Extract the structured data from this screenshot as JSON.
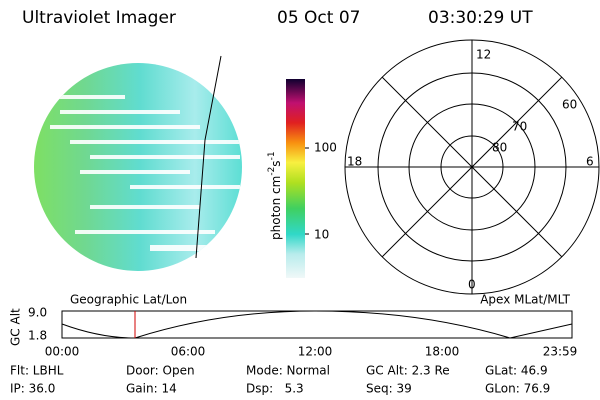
{
  "header": {
    "instrument": "Ultraviolet Imager",
    "date": "05 Oct 07",
    "time": "03:30:29 UT"
  },
  "colorbar": {
    "label": {
      "text": "photon cm",
      "sup1": "-2",
      "mid": "s",
      "sup2": "-1"
    },
    "ticks": [
      "100",
      "10"
    ]
  },
  "polar": {
    "mlt": [
      "12",
      "18",
      "6",
      "0"
    ],
    "mlat": [
      "60",
      "70",
      "80"
    ]
  },
  "orbit": {
    "axis_label": "GC Alt",
    "yticks": [
      "9.0",
      "1.8"
    ],
    "left_title": "Geographic Lat/Lon",
    "right_title": "Apex MLat/MLT",
    "xticks": [
      "00:00",
      "06:00",
      "12:00",
      "18:00",
      "23:59"
    ]
  },
  "info": {
    "rows": [
      [
        "Flt: LBHL",
        "Door: Open",
        "Mode: Normal",
        "GC Alt: 2.3 Re",
        "GLat: 46.9"
      ],
      [
        "IP: 36.0",
        "Gain: 14",
        "Dsp:   5.3",
        "Seq: 39",
        "GLon: 76.9"
      ]
    ]
  }
}
